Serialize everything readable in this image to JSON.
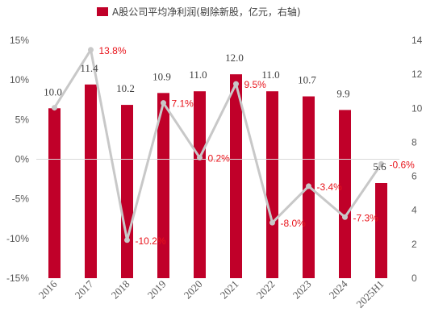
{
  "chart_data": {
    "type": "bar+line",
    "categories": [
      "2016",
      "2017",
      "2018",
      "2019",
      "2020",
      "2021",
      "2022",
      "2023",
      "2024",
      "2025H1"
    ],
    "series": [
      {
        "name": "A股公司平均净利润(剔除新股，亿元，右轴)",
        "type": "bar",
        "axis": "right",
        "values": [
          10.0,
          11.4,
          10.2,
          10.9,
          11.0,
          12.0,
          11.0,
          10.7,
          9.9,
          5.6
        ],
        "labels": [
          "10.0",
          "11.4",
          "10.2",
          "10.9",
          "11.0",
          "12.0",
          "11.0",
          "10.7",
          "9.9",
          "5.6"
        ],
        "color": "#c00029"
      },
      {
        "type": "line",
        "axis": "left",
        "values": [
          6.5,
          13.8,
          -10.2,
          7.1,
          0.2,
          9.5,
          -8.0,
          -3.4,
          -7.3,
          -0.6
        ],
        "labels": [
          "",
          "13.8%",
          "-10.2%",
          "7.1%",
          "0.2%",
          "9.5%",
          "-8.0%",
          "-3.4%",
          "-7.3%",
          "-0.6%"
        ],
        "color": "#c8c8c8",
        "label_color": "#e8141b"
      }
    ],
    "left_axis": {
      "ylim": [
        -15,
        15
      ],
      "ticks": [
        "15%",
        "10%",
        "5%",
        "0%",
        "-5%",
        "-10%",
        "-15%"
      ]
    },
    "right_axis": {
      "ylim": [
        0,
        14
      ],
      "ticks": [
        "14",
        "12",
        "10",
        "8",
        "6",
        "4",
        "2",
        "0"
      ]
    },
    "grid": false,
    "legend_position": "top"
  }
}
